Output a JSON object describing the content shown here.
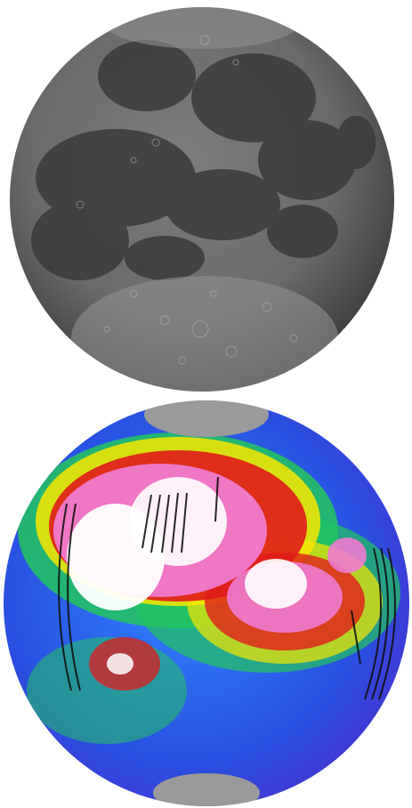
{
  "figure": {
    "panels": [
      {
        "kind": "grayscale-photograph",
        "subject": "moon"
      },
      {
        "kind": "false-color-map",
        "subject": "moon"
      }
    ],
    "colors": {
      "background": "#ffffff",
      "photo_dark": "#2a2a2a",
      "photo_light": "#8a8a8a",
      "map_low": "#3b2bd0",
      "map_mid_low": "#1e7bff",
      "map_mid": "#22c55e",
      "map_mid_high": "#f7e600",
      "map_high": "#e01b1b",
      "map_very_high": "#f07ad0",
      "map_max": "#ffffff",
      "data_gap_lines": "#111111",
      "polar_caps": "#9a9a9a"
    }
  }
}
